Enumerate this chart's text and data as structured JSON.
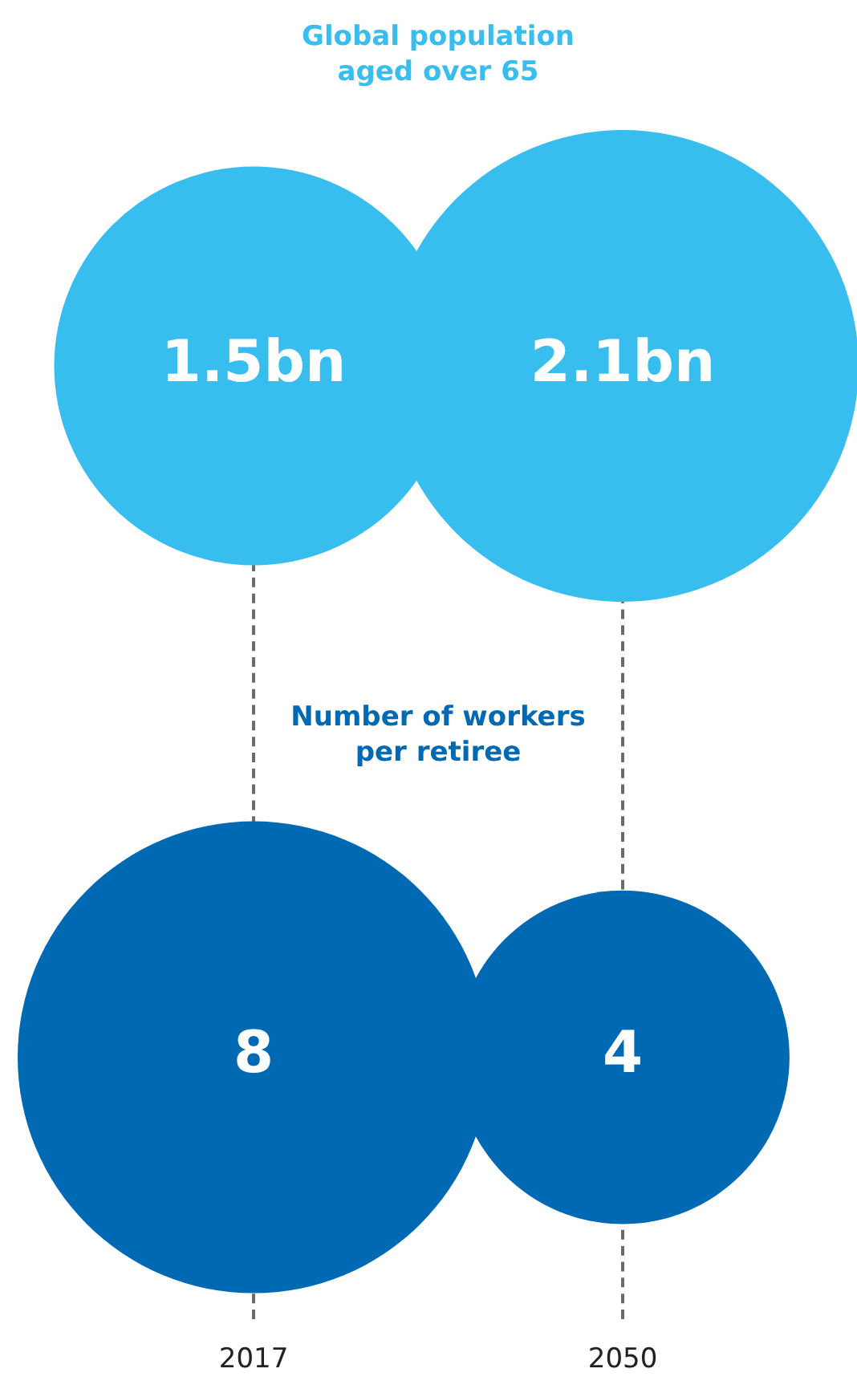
{
  "chart_data": [
    {
      "type": "other",
      "title": "Global population aged over 65",
      "values": [
        1.5,
        2.1
      ],
      "value_labels": [
        "1.5bn",
        "2.1bn"
      ],
      "color": "#38bdef"
    },
    {
      "type": "other",
      "title": "Number of workers per retiree",
      "categories": [
        "2017",
        "2050"
      ],
      "values": [
        8,
        4
      ],
      "data_labels": true,
      "color": "#0069b4"
    }
  ]
}
